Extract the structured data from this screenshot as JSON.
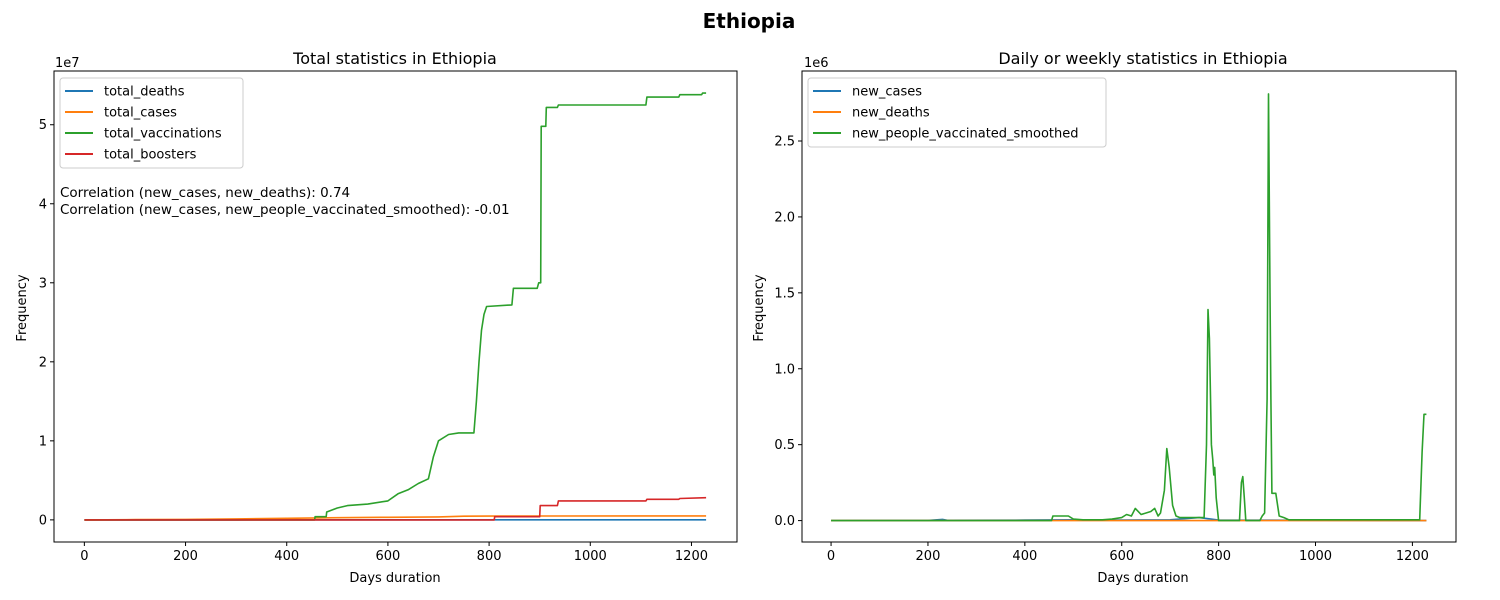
{
  "suptitle": "Ethiopia",
  "chart_data": [
    {
      "type": "line",
      "title": "Total statistics in Ethiopia",
      "xlabel": "Days duration",
      "ylabel": "Frequency",
      "y_offset_label": "1e7",
      "y_scale": 10000000,
      "xlim": [
        -60,
        1290
      ],
      "ylim": [
        -2800000,
        56800000
      ],
      "xticks": [
        0,
        200,
        400,
        600,
        800,
        1000,
        1200
      ],
      "xtick_labels": [
        "0",
        "200",
        "400",
        "600",
        "800",
        "1000",
        "1200"
      ],
      "yticks": [
        0,
        10000000,
        20000000,
        30000000,
        40000000,
        50000000
      ],
      "ytick_labels": [
        "0",
        "1",
        "2",
        "3",
        "4",
        "5"
      ],
      "grid": false,
      "legend_position": "upper-left",
      "annotations": [
        "Correlation (new_cases, new_deaths): 0.74",
        "Correlation (new_cases, new_people_vaccinated_smoothed): -0.01"
      ],
      "series": [
        {
          "name": "total_deaths",
          "color": "#1f77b4",
          "points": [
            [
              0,
              0
            ],
            [
              100,
              500
            ],
            [
              200,
              1000
            ],
            [
              300,
              2000
            ],
            [
              400,
              4000
            ],
            [
              500,
              5000
            ],
            [
              600,
              6000
            ],
            [
              700,
              7000
            ],
            [
              800,
              7500
            ],
            [
              1229,
              7500
            ]
          ]
        },
        {
          "name": "total_cases",
          "color": "#ff7f0e",
          "points": [
            [
              0,
              0
            ],
            [
              100,
              30000
            ],
            [
              200,
              60000
            ],
            [
              300,
              120000
            ],
            [
              400,
              200000
            ],
            [
              500,
              270000
            ],
            [
              600,
              330000
            ],
            [
              700,
              380000
            ],
            [
              750,
              470000
            ],
            [
              800,
              480000
            ],
            [
              900,
              490000
            ],
            [
              1229,
              500000
            ]
          ]
        },
        {
          "name": "total_vaccinations",
          "color": "#2ca02c",
          "points": [
            [
              0,
              0
            ],
            [
              455,
              0
            ],
            [
              456,
              400000
            ],
            [
              478,
              400000
            ],
            [
              479,
              1000000
            ],
            [
              500,
              1500000
            ],
            [
              520,
              1800000
            ],
            [
              560,
              2000000
            ],
            [
              600,
              2400000
            ],
            [
              620,
              3300000
            ],
            [
              640,
              3800000
            ],
            [
              660,
              4600000
            ],
            [
              680,
              5200000
            ],
            [
              690,
              8000000
            ],
            [
              700,
              10000000
            ],
            [
              720,
              10800000
            ],
            [
              740,
              11000000
            ],
            [
              770,
              11000000
            ],
            [
              775,
              15000000
            ],
            [
              780,
              20000000
            ],
            [
              785,
              24000000
            ],
            [
              790,
              26000000
            ],
            [
              795,
              27000000
            ],
            [
              845,
              27200000
            ],
            [
              848,
              29300000
            ],
            [
              895,
              29300000
            ],
            [
              898,
              30000000
            ],
            [
              902,
              30000000
            ],
            [
              903,
              49800000
            ],
            [
              912,
              49800000
            ],
            [
              913,
              52200000
            ],
            [
              935,
              52200000
            ],
            [
              937,
              52500000
            ],
            [
              1110,
              52500000
            ],
            [
              1112,
              53500000
            ],
            [
              1175,
              53500000
            ],
            [
              1177,
              53800000
            ],
            [
              1220,
              53800000
            ],
            [
              1222,
              54000000
            ],
            [
              1229,
              54000000
            ]
          ]
        },
        {
          "name": "total_boosters",
          "color": "#d62728",
          "points": [
            [
              0,
              0
            ],
            [
              810,
              0
            ],
            [
              811,
              400000
            ],
            [
              900,
              400000
            ],
            [
              901,
              1800000
            ],
            [
              935,
              1800000
            ],
            [
              937,
              2400000
            ],
            [
              1110,
              2400000
            ],
            [
              1112,
              2600000
            ],
            [
              1175,
              2600000
            ],
            [
              1177,
              2700000
            ],
            [
              1229,
              2800000
            ]
          ]
        }
      ]
    },
    {
      "type": "line",
      "title": "Daily or weekly statistics in Ethiopia",
      "xlabel": "Days duration",
      "ylabel": "Frequency",
      "y_offset_label": "1e6",
      "y_scale": 1000000,
      "xlim": [
        -60,
        1290
      ],
      "ylim": [
        -141000,
        2961000
      ],
      "xticks": [
        0,
        200,
        400,
        600,
        800,
        1000,
        1200
      ],
      "xtick_labels": [
        "0",
        "200",
        "400",
        "600",
        "800",
        "1000",
        "1200"
      ],
      "yticks": [
        0,
        500000,
        1000000,
        1500000,
        2000000,
        2500000
      ],
      "ytick_labels": [
        "0.0",
        "0.5",
        "1.0",
        "1.5",
        "2.0",
        "2.5"
      ],
      "grid": false,
      "legend_position": "upper-left",
      "series": [
        {
          "name": "new_cases",
          "color": "#1f77b4",
          "points": [
            [
              0,
              0
            ],
            [
              200,
              1000
            ],
            [
              230,
              8000
            ],
            [
              240,
              2000
            ],
            [
              400,
              3000
            ],
            [
              500,
              5000
            ],
            [
              600,
              4000
            ],
            [
              700,
              5000
            ],
            [
              760,
              20000
            ],
            [
              800,
              3000
            ],
            [
              1229,
              100
            ]
          ]
        },
        {
          "name": "new_deaths",
          "color": "#ff7f0e",
          "points": [
            [
              0,
              0
            ],
            [
              1229,
              0
            ]
          ]
        },
        {
          "name": "new_people_vaccinated_smoothed",
          "color": "#2ca02c",
          "points": [
            [
              0,
              0
            ],
            [
              455,
              0
            ],
            [
              458,
              30000
            ],
            [
              490,
              30000
            ],
            [
              500,
              10000
            ],
            [
              520,
              5000
            ],
            [
              560,
              5000
            ],
            [
              580,
              10000
            ],
            [
              600,
              20000
            ],
            [
              610,
              40000
            ],
            [
              620,
              30000
            ],
            [
              628,
              80000
            ],
            [
              640,
              40000
            ],
            [
              660,
              60000
            ],
            [
              668,
              80000
            ],
            [
              675,
              30000
            ],
            [
              680,
              50000
            ],
            [
              688,
              200000
            ],
            [
              693,
              475000
            ],
            [
              698,
              350000
            ],
            [
              705,
              100000
            ],
            [
              712,
              30000
            ],
            [
              720,
              20000
            ],
            [
              760,
              20000
            ],
            [
              770,
              20000
            ],
            [
              775,
              500000
            ],
            [
              778,
              1390000
            ],
            [
              781,
              1200000
            ],
            [
              785,
              500000
            ],
            [
              788,
              400000
            ],
            [
              790,
              300000
            ],
            [
              792,
              350000
            ],
            [
              795,
              150000
            ],
            [
              800,
              0
            ],
            [
              843,
              0
            ],
            [
              847,
              250000
            ],
            [
              850,
              290000
            ],
            [
              853,
              150000
            ],
            [
              856,
              0
            ],
            [
              885,
              0
            ],
            [
              890,
              30000
            ],
            [
              895,
              50000
            ],
            [
              900,
              800000
            ],
            [
              903,
              2810000
            ],
            [
              906,
              1500000
            ],
            [
              908,
              800000
            ],
            [
              910,
              180000
            ],
            [
              918,
              180000
            ],
            [
              925,
              30000
            ],
            [
              935,
              20000
            ],
            [
              945,
              5000
            ],
            [
              1000,
              5000
            ],
            [
              1100,
              5000
            ],
            [
              1215,
              5000
            ],
            [
              1220,
              450000
            ],
            [
              1224,
              700000
            ],
            [
              1229,
              700000
            ]
          ]
        }
      ]
    }
  ]
}
